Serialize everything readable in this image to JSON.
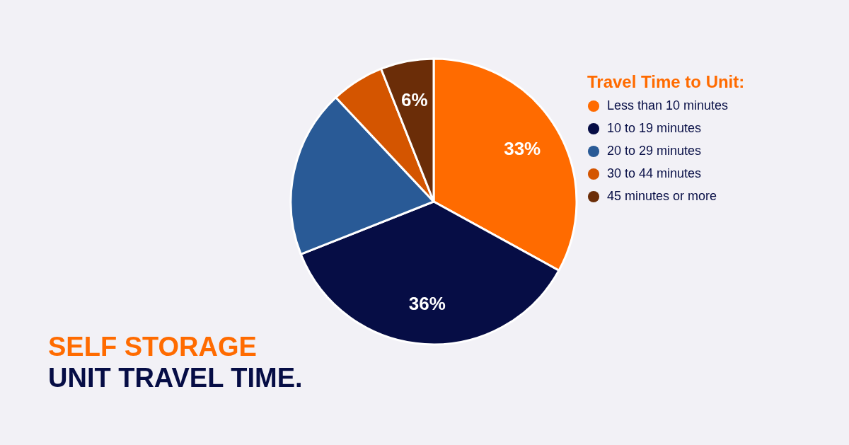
{
  "chart_data": {
    "type": "pie",
    "title": "SELF STORAGE",
    "subtitle": "UNIT TRAVEL TIME.",
    "legend_title": "Travel Time to Unit:",
    "legend": "right",
    "categories": [
      "Less than 10 minutes",
      "10 to 19 minutes",
      "20 to 29 minutes",
      "30 to 44 minutes",
      "45 minutes or more"
    ],
    "values": [
      33,
      36,
      19,
      6,
      6
    ],
    "colors": [
      "#ff6b00",
      "#060d45",
      "#295a96",
      "#d45500",
      "#6b2d08"
    ],
    "value_labels": [
      "33%",
      "36%",
      null,
      null,
      "6%"
    ]
  }
}
